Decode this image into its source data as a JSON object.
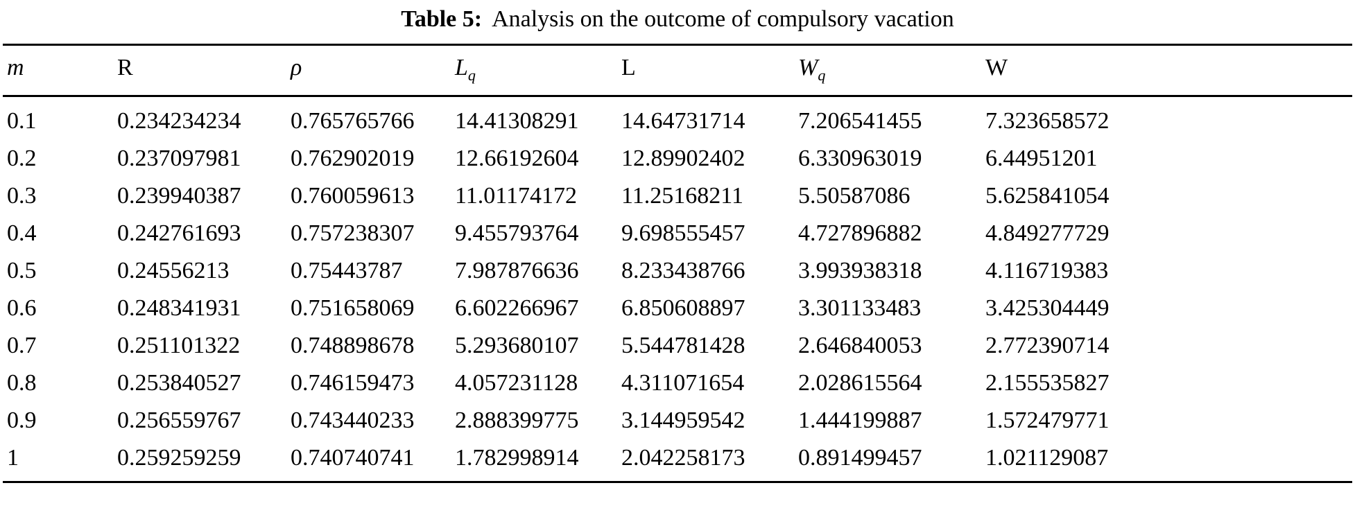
{
  "caption": {
    "label": "Table 5:",
    "text": "Analysis on the outcome of compulsory vacation"
  },
  "table": {
    "headers": [
      {
        "name": "m",
        "text": "m",
        "italic": true
      },
      {
        "name": "r",
        "text": "R",
        "italic": false
      },
      {
        "name": "rho",
        "text": "ρ",
        "italic": true
      },
      {
        "name": "lq",
        "text": "L",
        "sub": "q",
        "italic": true
      },
      {
        "name": "l",
        "text": "L",
        "italic": false
      },
      {
        "name": "wq",
        "text": "W",
        "sub": "q",
        "italic": true
      },
      {
        "name": "w",
        "text": "W",
        "italic": false
      }
    ],
    "rows": [
      [
        "0.1",
        "0.234234234",
        "0.765765766",
        "14.41308291",
        "14.64731714",
        "7.206541455",
        "7.323658572"
      ],
      [
        "0.2",
        "0.237097981",
        "0.762902019",
        "12.66192604",
        "12.89902402",
        "6.330963019",
        "6.44951201"
      ],
      [
        "0.3",
        "0.239940387",
        "0.760059613",
        "11.01174172",
        "11.25168211",
        "5.50587086",
        "5.625841054"
      ],
      [
        "0.4",
        "0.242761693",
        "0.757238307",
        "9.455793764",
        "9.698555457",
        "4.727896882",
        "4.849277729"
      ],
      [
        "0.5",
        "0.24556213",
        "0.75443787",
        "7.987876636",
        "8.233438766",
        "3.993938318",
        "4.116719383"
      ],
      [
        "0.6",
        "0.248341931",
        "0.751658069",
        "6.602266967",
        "6.850608897",
        "3.301133483",
        "3.425304449"
      ],
      [
        "0.7",
        "0.251101322",
        "0.748898678",
        "5.293680107",
        "5.544781428",
        "2.646840053",
        "2.772390714"
      ],
      [
        "0.8",
        "0.253840527",
        "0.746159473",
        "4.057231128",
        "4.311071654",
        "2.028615564",
        "2.155535827"
      ],
      [
        "0.9",
        "0.256559767",
        "0.743440233",
        "2.888399775",
        "3.144959542",
        "1.444199887",
        "1.572479771"
      ],
      [
        "1",
        "0.259259259",
        "0.740740741",
        "1.782998914",
        "2.042258173",
        "0.891499457",
        "1.021129087"
      ]
    ]
  },
  "chart_data": {
    "type": "table",
    "title": "Table 5: Analysis on the outcome of compulsory vacation",
    "columns": [
      "m",
      "R",
      "rho",
      "Lq",
      "L",
      "Wq",
      "W"
    ],
    "rows": [
      [
        0.1,
        0.234234234,
        0.765765766,
        14.41308291,
        14.64731714,
        7.206541455,
        7.323658572
      ],
      [
        0.2,
        0.237097981,
        0.762902019,
        12.66192604,
        12.89902402,
        6.330963019,
        6.44951201
      ],
      [
        0.3,
        0.239940387,
        0.760059613,
        11.01174172,
        11.25168211,
        5.50587086,
        5.625841054
      ],
      [
        0.4,
        0.242761693,
        0.757238307,
        9.455793764,
        9.698555457,
        4.727896882,
        4.849277729
      ],
      [
        0.5,
        0.24556213,
        0.75443787,
        7.987876636,
        8.233438766,
        3.993938318,
        4.116719383
      ],
      [
        0.6,
        0.248341931,
        0.751658069,
        6.602266967,
        6.850608897,
        3.301133483,
        3.425304449
      ],
      [
        0.7,
        0.251101322,
        0.748898678,
        5.293680107,
        5.544781428,
        2.646840053,
        2.772390714
      ],
      [
        0.8,
        0.253840527,
        0.746159473,
        4.057231128,
        4.311071654,
        2.028615564,
        2.155535827
      ],
      [
        0.9,
        0.256559767,
        0.743440233,
        2.888399775,
        3.144959542,
        1.444199887,
        1.572479771
      ],
      [
        1.0,
        0.259259259,
        0.740740741,
        1.782998914,
        2.042258173,
        0.891499457,
        1.021129087
      ]
    ]
  }
}
